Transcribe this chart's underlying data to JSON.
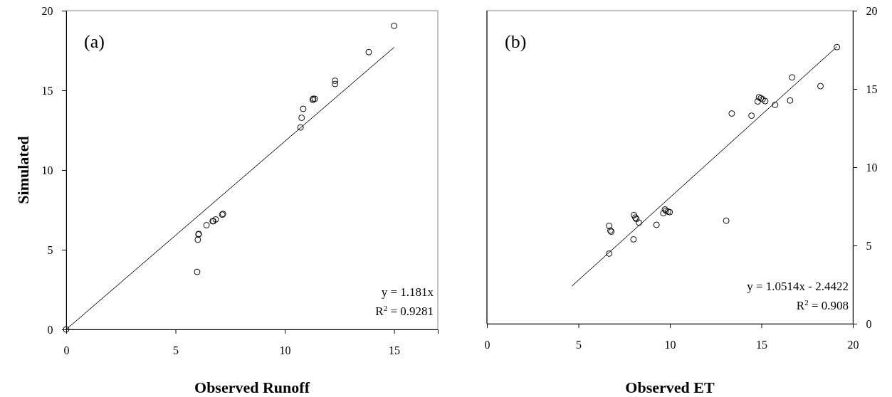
{
  "chart_data": [
    {
      "type": "scatter",
      "ylabel": "Simulated",
      "xlabel": "Observed Runoff",
      "xlim": [
        0,
        17
      ],
      "xticks": [
        0,
        5,
        10,
        15
      ],
      "ylim": [
        0,
        20
      ],
      "yticks": [
        0,
        5,
        10,
        15,
        20
      ],
      "grid": false,
      "annotations": [
        "(a)",
        "y = 1.181x",
        "R$^{2}$ = 0.9281"
      ],
      "series": [
        {
          "marker": "circle",
          "color": "#000000",
          "x": [
            0,
            15.0,
            13.84,
            12.3,
            12.3,
            11.28,
            11.3,
            11.37,
            10.84,
            10.77,
            10.72,
            7.17,
            7.14,
            6.84,
            6.7,
            6.73,
            6.42,
            6.06,
            6.05,
            6.02,
            5.99
          ],
          "values": [
            0,
            19.05,
            17.4,
            15.6,
            15.4,
            14.4,
            14.47,
            14.47,
            13.84,
            13.28,
            12.67,
            7.25,
            7.2,
            6.9,
            6.79,
            6.79,
            6.54,
            5.99,
            5.96,
            5.63,
            3.61
          ]
        },
        {
          "type": "line",
          "color": "#000000",
          "x": [
            0,
            15
          ],
          "values": [
            0,
            17.7
          ]
        }
      ]
    },
    {
      "type": "scatter",
      "xlabel": "Observed ET",
      "xlim": [
        0,
        20
      ],
      "xticks": [
        0,
        5,
        10,
        15,
        20
      ],
      "y2lim": [
        0,
        20
      ],
      "y2ticks": [
        0,
        5,
        10,
        15,
        20
      ],
      "grid": false,
      "annotations": [
        "(b)",
        "y = 1.0514x - 2.4422",
        "R$^{2}$ = 0.908"
      ],
      "series": [
        {
          "marker": "circle",
          "axis": "y2",
          "color": "#000000",
          "x": [
            19.13,
            16.68,
            18.23,
            16.57,
            15.75,
            14.87,
            14.97,
            15.07,
            15.21,
            14.8,
            14.46,
            13.38,
            13.08,
            9.27,
            9.73,
            9.79,
            9.9,
            9.99,
            9.64,
            8.04,
            8.11,
            8.17,
            8.31,
            8.01,
            6.68,
            6.75,
            6.8,
            6.68
          ],
          "values": [
            17.67,
            15.74,
            15.18,
            14.26,
            13.98,
            14.47,
            14.4,
            14.34,
            14.22,
            14.2,
            13.29,
            13.43,
            6.58,
            6.32,
            7.3,
            7.22,
            7.16,
            7.13,
            7.06,
            6.94,
            6.78,
            6.69,
            6.46,
            5.39,
            6.25,
            5.95,
            5.88,
            4.48
          ]
        },
        {
          "type": "line",
          "axis": "y2",
          "color": "#000000",
          "x": [
            4.64,
            19.13
          ],
          "values": [
            2.4,
            17.7
          ]
        }
      ]
    }
  ]
}
